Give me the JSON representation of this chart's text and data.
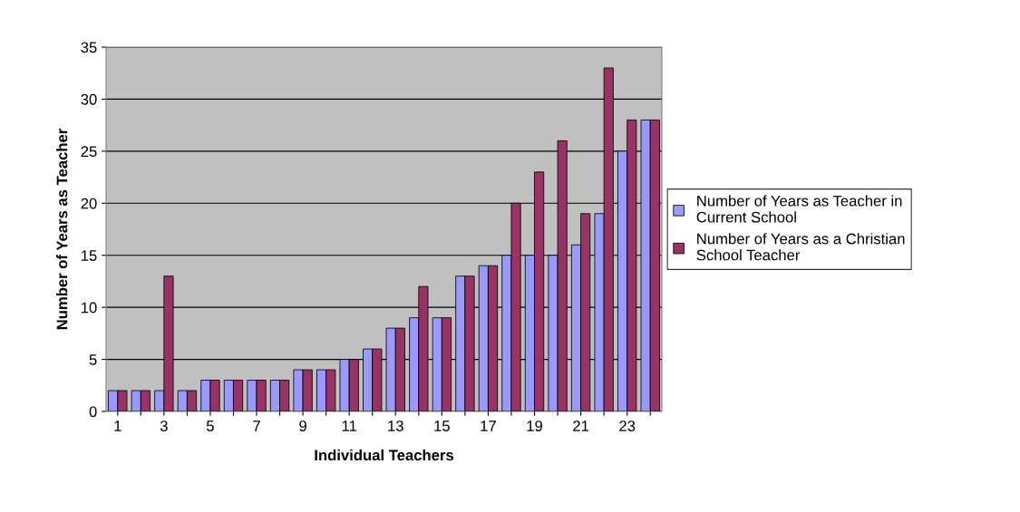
{
  "chart_data": {
    "type": "bar",
    "xlabel": "Individual Teachers",
    "ylabel": "Number of Years as Teacher",
    "categories": [
      "1",
      null,
      "3",
      null,
      "5",
      null,
      "7",
      null,
      "9",
      null,
      "11",
      null,
      "13",
      null,
      "15",
      null,
      "17",
      null,
      "19",
      null,
      "21",
      null,
      "23",
      null
    ],
    "series": [
      {
        "name": "Number of Years as Teacher in\nCurrent School",
        "color": "#9999ff",
        "values": [
          2,
          2,
          2,
          2,
          3,
          3,
          3,
          3,
          4,
          4,
          5,
          6,
          8,
          9,
          9,
          13,
          14,
          15,
          15,
          15,
          16,
          19,
          25,
          28
        ]
      },
      {
        "name": "Number of Years as a Christian\nSchool Teacher",
        "color": "#993366",
        "values": [
          2,
          2,
          13,
          2,
          3,
          3,
          3,
          3,
          4,
          4,
          5,
          6,
          8,
          12,
          9,
          13,
          14,
          20,
          23,
          26,
          19,
          33,
          28,
          28
        ]
      }
    ],
    "ylim": [
      0,
      35
    ],
    "yticks": [
      0,
      5,
      10,
      15,
      20,
      25,
      30,
      35
    ],
    "grid": "y",
    "legend": "right"
  }
}
